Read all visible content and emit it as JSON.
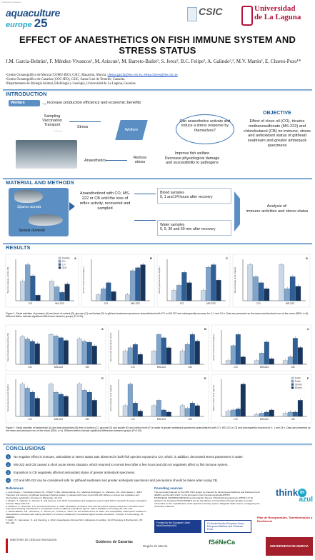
{
  "header": {
    "tag": "Published in Elsevier",
    "logo_left_line1": "aquaculture",
    "logo_left_line2": "europe",
    "logo_left_num": "25",
    "logo_mid": "CSIC",
    "logo_right_line1": "Universidad",
    "logo_right_line2": "de La Laguna"
  },
  "title": "EFFECT OF ANAESTHETICS ON FISH IMMUNE SYSTEM AND STRESS STATUS",
  "authors": "J.M. García-Beltrán¹, F. Méndez-Vivancos¹, M. Arizcun¹, M. Barreto-Bailet², S. Jerez², B.C. Felipe², A. Galindo²,³, M.V. Martín², E. Chaves-Pozo¹*",
  "affiliations": {
    "a1": "¹Centro Oceanográfico de Murcia (COMU-IEO), CSIC, Mazarrón, Murcia.",
    "a1_mails": "chema.garcia@ieo.csic.es, elena.chaves@ieo.csic.es",
    "a2": "²Centro Oceanográfico de Canarias (COC-IEO), CSIC, Santa Cruz de Tenerife, Canarias.",
    "a3": "³Departamento de Biología Animal, Edafología y Geología, Universidad de La Laguna, Canarias."
  },
  "introduction": {
    "heading": "INTRODUCTION",
    "welfare_tag": "Welfare",
    "welfare_text": "increase production efficiency and economic benefits",
    "sampling": "Sampling\nVaccination\nTransport",
    "dots": ".........",
    "stress": "Stress",
    "welfare2": "Welfare",
    "anaesthetics": "Anaesthetics",
    "reduce_stress": "Reduce stress",
    "improve": "Improve fish welfare\nDecrease physiological damage\nand susceptibility to pathogens",
    "question": "Can anaesthetics activate and induce a stress response by themselves?",
    "obj_title": "OBJECTIVE",
    "obj_text": "Effect of clove oil (CO), tricaine methanesulfonate (MS-222) and chlorobutanol (CB) on immune, stress and antioxidant status of gilthead seabream and greater amberjack specimens"
  },
  "methods": {
    "heading": "MATERIAL AND METHODS",
    "fish1": "Sparus aurata",
    "fish2": "Seriola dumerili",
    "anaesth": "Anaesthetized with CO, MS-222 or CB until the lose of reflex activity, recovered and sampled",
    "blood": "Blood samples\n0, 1 and 24 hours after recovery",
    "water": "Water samples\n0, 5, 30 and 60 min after recovery",
    "analysis": "Analysis of:\nimmune activities and stress status"
  },
  "results": {
    "heading": "RESULTS",
    "fig1_caption": "Figure 1. Serial activities of protease (A) and level of cortisol (B), glucose (C) and lactate (D) in gilthead seabream specimens anaesthetized with CO or MS-222 and subsequently recovery for 0, 1 and 24 h. Data are presented as the mean and standard error of the mean (SEM, n=5). Different letters indicate significant differences between groups (P<0.05).",
    "fig2_caption": "Figure 2. Serial activities of bactericidal (A) and total antioxidant (B) level of cortisol (C), glucose (D) and lactate (E) and cortisol level (F) in water of greater amberjack specimens anaesthetized with CO, MS-222 or CB and subsequently recovery for 0, 1 and 24 h. Data are presented as the mean and standard error of the mean (SEM, n=4). Different letters indicate significant differences between groups (P<0.05).",
    "legend1": [
      "Control",
      "0 h",
      "1 h",
      "24 h"
    ],
    "legend2": [
      "0 min",
      "5 min",
      "30 min",
      "60 min"
    ]
  },
  "chart_data": [
    {
      "type": "bar",
      "panel": "1A",
      "ylabel": "Serum protease activity (%)",
      "categories": [
        "CO",
        "MS-222"
      ],
      "series": [
        {
          "name": "Control",
          "values": [
            7,
            7
          ]
        },
        {
          "name": "0 h",
          "values": [
            13,
            5
          ]
        },
        {
          "name": "1 h",
          "values": [
            9,
            3
          ]
        },
        {
          "name": "24 h",
          "values": [
            2,
            6
          ]
        }
      ]
    },
    {
      "type": "bar",
      "panel": "1B",
      "ylabel": "Serum cortisol level (ng/mL)",
      "categories": [
        "CO",
        "MS-222"
      ],
      "series": [
        {
          "name": "Control",
          "values": [
            20,
            20
          ]
        },
        {
          "name": "0 h",
          "values": [
            40,
            100
          ]
        },
        {
          "name": "1 h",
          "values": [
            60,
            110
          ]
        },
        {
          "name": "24 h",
          "values": [
            30,
            120
          ]
        }
      ]
    },
    {
      "type": "bar",
      "panel": "1C",
      "ylabel": "Serum glucose level (mg/dL)",
      "categories": [
        "CO",
        "MS-222"
      ],
      "series": [
        {
          "name": "Control",
          "values": [
            40,
            40
          ]
        },
        {
          "name": "0 h",
          "values": [
            60,
            130
          ]
        },
        {
          "name": "1 h",
          "values": [
            110,
            140
          ]
        },
        {
          "name": "24 h",
          "values": [
            70,
            80
          ]
        }
      ]
    },
    {
      "type": "bar",
      "panel": "1D",
      "ylabel": "Serum lactate level (mg/dL)",
      "categories": [
        "CO",
        "MS-222"
      ],
      "series": [
        {
          "name": "Control",
          "values": [
            30,
            30
          ]
        },
        {
          "name": "0 h",
          "values": [
            20,
            10
          ]
        },
        {
          "name": "1 h",
          "values": [
            15,
            20
          ]
        },
        {
          "name": "24 h",
          "values": [
            10,
            12
          ]
        }
      ]
    },
    {
      "type": "bar",
      "panel": "2A",
      "ylabel": "Serum bactericidal activity (%)",
      "categories": [
        "CO",
        "MS-222",
        "CB"
      ],
      "series": [
        {
          "name": "Control",
          "values": [
            60,
            65,
            55
          ]
        },
        {
          "name": "0 h",
          "values": [
            55,
            62,
            50
          ]
        },
        {
          "name": "1 h",
          "values": [
            50,
            58,
            48
          ]
        },
        {
          "name": "24 h",
          "values": [
            45,
            52,
            40
          ]
        }
      ]
    },
    {
      "type": "bar",
      "panel": "2B",
      "ylabel": "Serum total antioxidant activity",
      "categories": [
        "CO",
        "MS-222",
        "CB"
      ],
      "series": [
        {
          "name": "Control",
          "values": [
            0.4,
            0.4,
            0.4
          ]
        },
        {
          "name": "0 h",
          "values": [
            0.5,
            0.9,
            0.6
          ]
        },
        {
          "name": "1 h",
          "values": [
            0.6,
            0.8,
            0.9
          ]
        },
        {
          "name": "24 h",
          "values": [
            0.3,
            0.5,
            0.7
          ]
        }
      ]
    },
    {
      "type": "bar",
      "panel": "2C",
      "ylabel": "Serum cortisol level (ng/mL)",
      "categories": [
        "CO",
        "MS-222",
        "CB"
      ],
      "series": [
        {
          "name": "Control",
          "values": [
            20,
            20,
            20
          ]
        },
        {
          "name": "0 h",
          "values": [
            100,
            60,
            40
          ]
        },
        {
          "name": "1 h",
          "values": [
            160,
            120,
            140
          ]
        },
        {
          "name": "24 h",
          "values": [
            40,
            30,
            90
          ]
        }
      ]
    },
    {
      "type": "bar",
      "panel": "2D",
      "ylabel": "Serum glucose level (mg/dL)",
      "categories": [
        "CO",
        "MS-222",
        "CB"
      ],
      "series": [
        {
          "name": "Control",
          "values": [
            80,
            80,
            80
          ]
        },
        {
          "name": "0 h",
          "values": [
            70,
            60,
            65
          ]
        },
        {
          "name": "1 h",
          "values": [
            60,
            55,
            60
          ]
        },
        {
          "name": "24 h",
          "values": [
            45,
            50,
            40
          ]
        }
      ]
    },
    {
      "type": "bar",
      "panel": "2E",
      "ylabel": "Serum lactate level (mg/dL)",
      "categories": [
        "CO",
        "MS-222",
        "CB"
      ],
      "series": [
        {
          "name": "Control",
          "values": [
            20,
            20,
            20
          ]
        },
        {
          "name": "0 h",
          "values": [
            60,
            30,
            15
          ]
        },
        {
          "name": "1 h",
          "values": [
            25,
            12,
            25
          ]
        },
        {
          "name": "24 h",
          "values": [
            10,
            8,
            20
          ]
        }
      ]
    },
    {
      "type": "bar",
      "panel": "2F",
      "ylabel": "Water cortisol level (ng/mL)",
      "categories": [
        "CO",
        "MS-222",
        "CB"
      ],
      "series": [
        {
          "name": "0 min",
          "values": [
            0.5,
            0.2,
            0.3
          ]
        },
        {
          "name": "5 min",
          "values": [
            0.6,
            0.3,
            0.4
          ]
        },
        {
          "name": "30 min",
          "values": [
            0.7,
            0.4,
            0.4
          ]
        },
        {
          "name": "60 min",
          "values": [
            3,
            0.6,
            1.5
          ]
        }
      ]
    }
  ],
  "conclusions": {
    "heading": "CONCLUSIONS",
    "items": [
      "No negative effect in immune, antioxidant or stress status was observed in both fish species exposed to CO, which, in addition, decreased stress parameters in water.",
      "MS-222 and CB caused a short acute stress situation, which returned to normal level after a few hours and did not negatively affect to fish immune system.",
      "Exposition to CB negatively affected antioxidant status of greater amberjack specimens.",
      "CO and MS-222 can be considered safe for gilthead seabream and greater amberjack specimens and precautions should be taken when using CB."
    ]
  },
  "references": {
    "heading": "References",
    "items": [
      "1. Jerez-Cepa, I., Fernández-Castro, M., O'Neill, T.J.Da., Martos-Sitcha, J.A., Martínez-Rodríguez, G., Mancera, J.M., Ruiz-Jarabo, I., 2019. Transport and recovery of gilthead seabream (Sparus aurata L.) sedated with clove oil and MS-222: Effects on stress axis regulation and intermediary metabolism. Frontiers in Physiology. 10: 612.",
      "2. Martins, T., Valentim, A., Pereira, N. and Antunes, L.M. 2019. Anaesthetics and analgesics used in adult fish for research: A review. Laboratory Animals. 53(4): 325–341.",
      "3. Sollaroni, S., Howorthe, S.H. and Ovisenhossein, A. 2018. Modulation of rainbow trout (Oncorhynchus mykiss) cutaneous mucosal immune responses following anaesthesia: A comparative study on different anaesthetic agents. Fish & Shellfish Immunology. 80: 132–140.",
      "4. García-Beltrán, J.M., Johnstone, C., Arizcun, M., Cuesta, A., Pérez, M. and Chaves-Pozo, E. 2024. The susceptibility of European seabass to betanodavirus increases with rearing densities in a process mediated by neuroactive ligand-receptor interaction. Frontiers in Immunology. 15: 1369603.",
      "5. Zahl, I.H., Samuelsen, O. and Kiessling, A. 2012. Anaesthesia of farmed fish: implications for welfare. Fish Physiology & Biochemistry. 38: 201–218."
    ]
  },
  "funding": {
    "heading": "Founding sources",
    "text": "This work was financed by the ORF TWO project co-financed by the European Maritime and Fisheries Fund (EMFF) and the IEO-CSIC; by the European Union NextGenerationEU/PRTR, MCIN/AEI/10.13039/501100011033 and Fundación Séneca (Thinking/Autoprogramme PRTR-C17.I1). Gobierno de Canarias (SOO2/160957) and by the Ministry of Universities through subsidies to public universities for the requalification of the Spanish university system. Margarita Salas Grants, managed by the University of Murcia."
  },
  "footer_logos": {
    "eu1": "Funded by the European Union NextGenerationEU",
    "eu2": "Co-funded by the European Union European Maritime and Fisheries Fund",
    "gov": "Gobierno de Canarias",
    "murcia": "Región de Murcia",
    "seneca": "fSéNeCa",
    "uni": "UNIVERSIDAD DE MURCIA",
    "think": "think",
    "in": "in",
    "azul": "azul",
    "plan": "Plan de Recuperación, Transformación y Resiliencia",
    "ministry": "MINISTERIO DE CIENCIA E INNOVACIÓN"
  },
  "colors": {
    "primary": "#1f5d97",
    "bar_light": "#c9d7e6",
    "bar_mid": "#7fa4cc",
    "bar_dark": "#2f5f95",
    "bar_darker": "#18355e"
  }
}
